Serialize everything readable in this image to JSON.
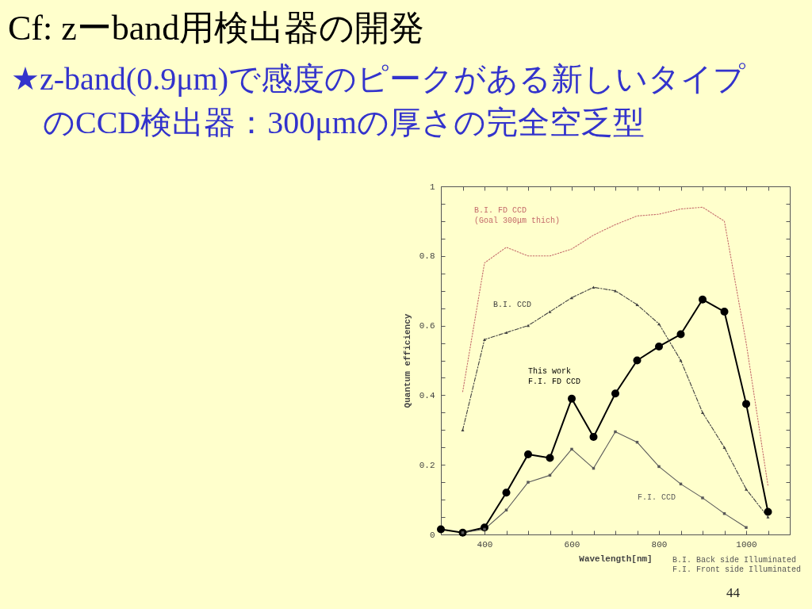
{
  "chart_data": {
    "type": "line",
    "title": "Cf: zーband用検出器の開発",
    "subtitle": "★z-band(0.9μm)で感度のピークがある新しいタイプのCCD検出器：300μmの厚さの完全空乏型",
    "xlabel": "Wavelength[nm]",
    "ylabel": "Quantum efficiency",
    "x": [
      300,
      350,
      400,
      450,
      500,
      550,
      600,
      650,
      700,
      750,
      800,
      850,
      900,
      950,
      1000,
      1050
    ],
    "series": [
      {
        "name": "This work\nF.I. FD CCD",
        "color": "#000000",
        "marker": "circle",
        "line_style": "solid",
        "values": [
          0.015,
          0.005,
          0.02,
          0.12,
          0.23,
          0.22,
          0.39,
          0.28,
          0.405,
          0.5,
          0.54,
          0.575,
          0.675,
          0.64,
          0.375,
          0.065
        ]
      },
      {
        "name": "B.I. FD CCD\n(Goal 300μm thich)",
        "color": "#c46a6a",
        "marker": "none",
        "line_style": "dotted",
        "values": [
          null,
          0.41,
          0.78,
          0.825,
          0.8,
          0.8,
          0.82,
          0.86,
          0.89,
          0.915,
          0.92,
          0.935,
          0.94,
          0.9,
          0.55,
          0.14
        ]
      },
      {
        "name": "B.I. CCD",
        "color": "#404040",
        "marker": "triangle",
        "line_style": "dashed",
        "values": [
          null,
          0.3,
          0.56,
          0.58,
          0.6,
          0.64,
          0.68,
          0.71,
          0.7,
          0.66,
          0.605,
          0.5,
          0.35,
          0.25,
          0.13,
          0.05
        ]
      },
      {
        "name": "F.I. CCD",
        "color": "#5a5a5a",
        "marker": "square",
        "line_style": "solid",
        "values": [
          null,
          0.005,
          0.015,
          0.07,
          0.15,
          0.17,
          0.245,
          0.19,
          0.295,
          0.265,
          0.195,
          0.145,
          0.105,
          0.06,
          0.02,
          null
        ]
      }
    ],
    "xlim": [
      300,
      1100
    ],
    "ylim": [
      0,
      1
    ],
    "xticks": [
      {
        "value": 350,
        "label": null
      },
      400,
      {
        "value": 450,
        "label": null
      },
      {
        "value": 500,
        "label": null
      },
      {
        "value": 550,
        "label": null
      },
      600,
      {
        "value": 650,
        "label": null
      },
      {
        "value": 700,
        "label": null
      },
      {
        "value": 750,
        "label": null
      },
      800,
      {
        "value": 850,
        "label": null
      },
      {
        "value": 900,
        "label": null
      },
      {
        "value": 950,
        "label": null
      },
      1000,
      {
        "value": 1050,
        "label": null
      }
    ],
    "yticks": [
      0,
      {
        "value": 0.05,
        "label": null
      },
      {
        "value": 0.1,
        "label": null
      },
      {
        "value": 0.15,
        "label": null
      },
      0.2,
      {
        "value": 0.25,
        "label": null
      },
      {
        "value": 0.3,
        "label": null
      },
      {
        "value": 0.35,
        "label": null
      },
      0.4,
      {
        "value": 0.45,
        "label": null
      },
      {
        "value": 0.5,
        "label": null
      },
      {
        "value": 0.55,
        "label": null
      },
      0.6,
      {
        "value": 0.65,
        "label": null
      },
      {
        "value": 0.7,
        "label": null
      },
      {
        "value": 0.75,
        "label": null
      },
      0.8,
      {
        "value": 0.85,
        "label": null
      },
      {
        "value": 0.9,
        "label": null
      },
      {
        "value": 0.95,
        "label": null
      },
      1
    ],
    "annotations": [
      "B.I. Back side Illuminated",
      "F.I. Front side Illuminated",
      "44"
    ]
  }
}
